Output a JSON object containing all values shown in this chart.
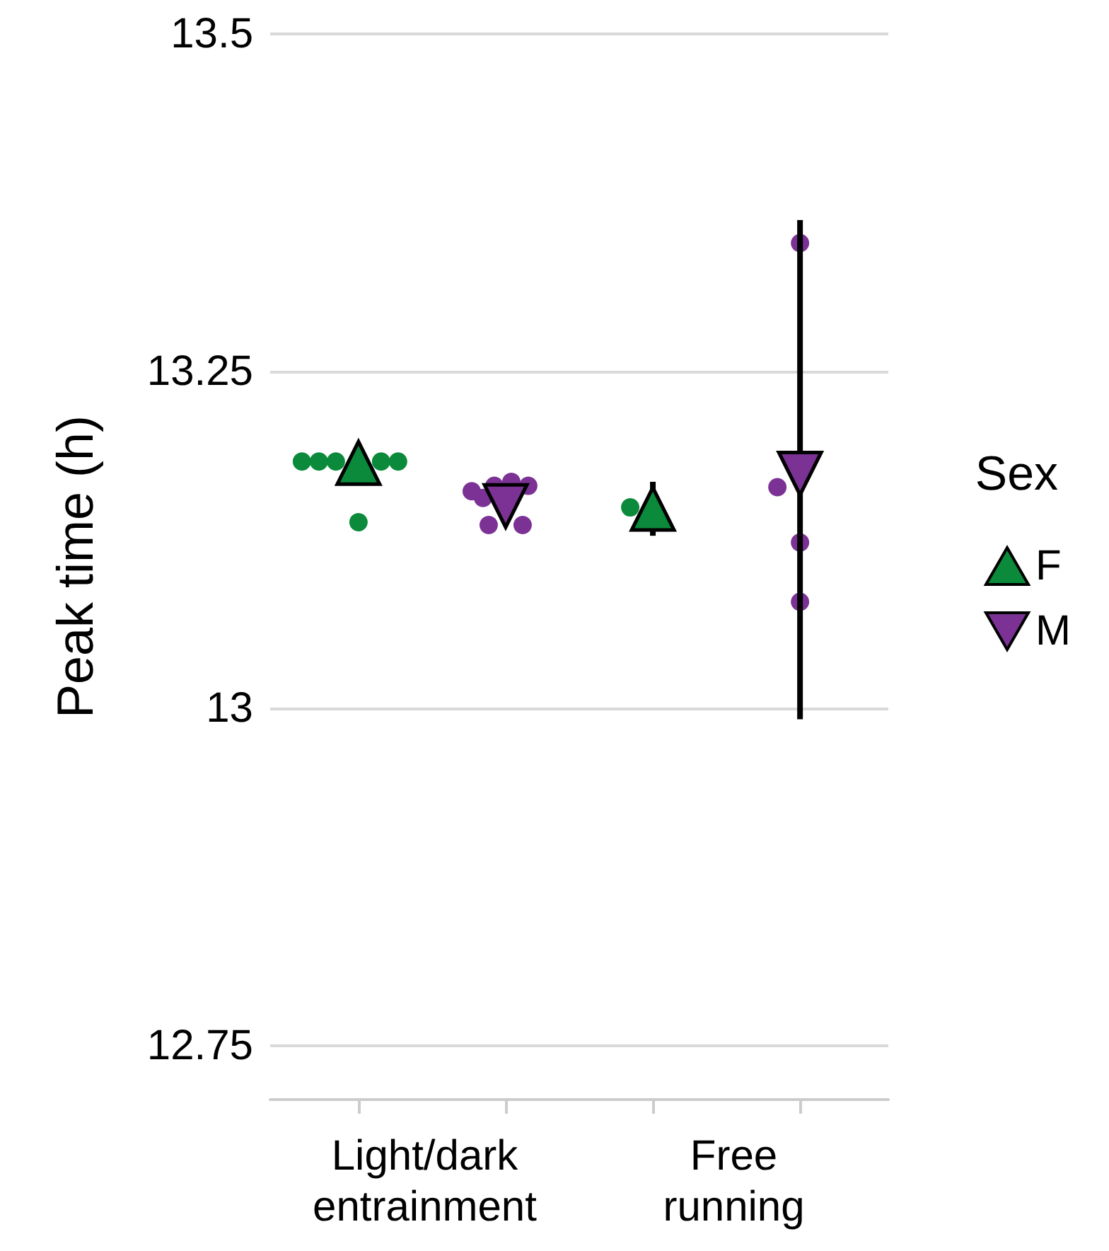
{
  "chart_data": {
    "type": "scatter",
    "ylabel": "Peak time (h)",
    "legend_title": "Sex",
    "legend": "right",
    "grid": "y",
    "categories": [
      "Light/dark entrainment",
      "Free running"
    ],
    "ylim": [
      12.71,
      13.5
    ],
    "yticks": [
      12.75,
      13,
      13.25,
      13.5
    ],
    "series": [
      {
        "name": "F",
        "color": "#0a8a3a",
        "marker": "triangle",
        "values": [
          13.182,
          13.148
        ],
        "errors": [
          null,
          0.02
        ]
      },
      {
        "name": "M",
        "color": "#7b3294",
        "marker": "triangle-down",
        "values": [
          13.15,
          13.174
        ],
        "errors": [
          null,
          [
            12.992,
            13.362
          ]
        ]
      },
      {
        "color": "#0a8a3a",
        "marker": "circle",
        "x": [
          "Light/dark entrainment",
          "Light/dark entrainment",
          "Light/dark entrainment",
          "Light/dark entrainment",
          "Light/dark entrainment",
          "Light/dark entrainment",
          "Free running"
        ],
        "values": [
          13.183,
          13.183,
          13.183,
          13.183,
          13.183,
          13.138,
          13.149
        ]
      },
      {
        "color": "#7b3294",
        "marker": "circle",
        "x": [
          "Light/dark entrainment",
          "Light/dark entrainment",
          "Light/dark entrainment",
          "Light/dark entrainment",
          "Light/dark entrainment",
          "Light/dark entrainment",
          "Light/dark entrainment",
          "Free running",
          "Free running",
          "Free running",
          "Free running"
        ],
        "values": [
          13.156,
          13.165,
          13.168,
          13.165,
          13.161,
          13.136,
          13.136,
          13.345,
          13.164,
          13.123,
          13.079
        ]
      }
    ]
  }
}
